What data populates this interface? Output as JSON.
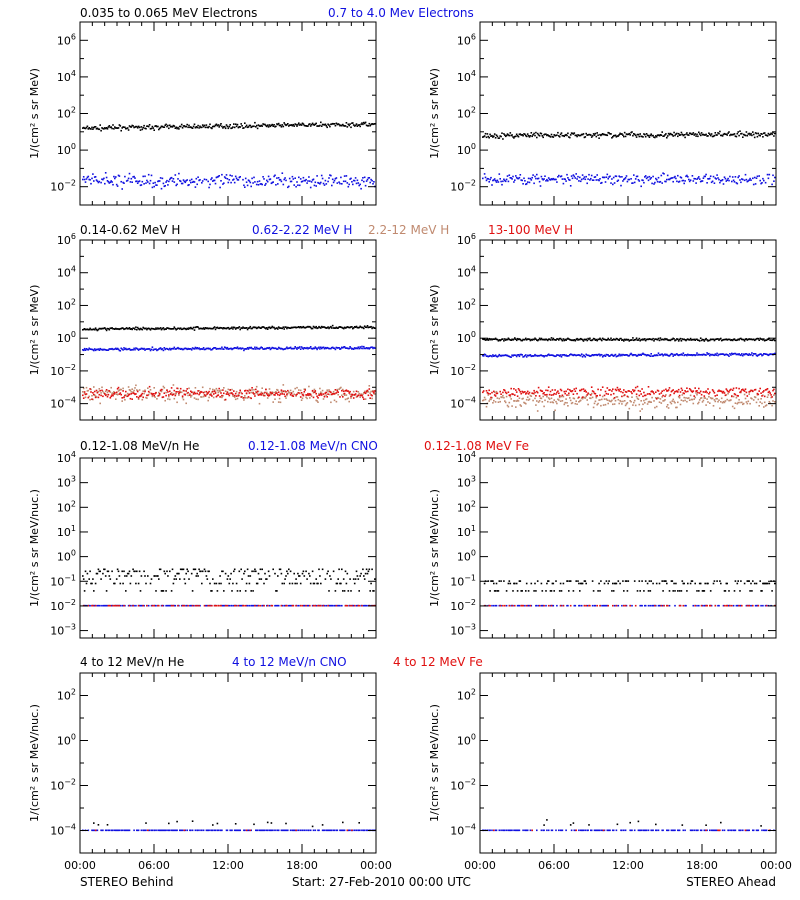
{
  "footer": {
    "left_label": "STEREO Behind",
    "center_label": "Start: 27-Feb-2010 00:00 UTC",
    "right_label": "STEREO Ahead"
  },
  "colors": {
    "black": "#000000",
    "blue": "#1010e0",
    "tan": "#c08a70",
    "red": "#e01010"
  },
  "chart_data": [
    {
      "type": "scatter",
      "row": 1,
      "spacecraft": "STEREO Behind",
      "ylabel": "1/(cm² s sr MeV)",
      "y_scale": "log",
      "ylim": [
        0.001,
        10000000
      ],
      "y_ticks": [
        "10^-2",
        "10^0",
        "10^2",
        "10^4",
        "10^6"
      ],
      "x_ticks": [
        "00:00",
        "06:00",
        "12:00",
        "18:00",
        "00:00"
      ],
      "legend": [
        {
          "name": "0.035 to 0.065 MeV Electrons",
          "color": "black"
        },
        {
          "name": "0.7 to 4.0 Mev Electrons",
          "color": "blue"
        }
      ],
      "series": [
        {
          "name": "0.035 to 0.065 MeV Electrons",
          "color": "black",
          "level": 15,
          "level_end": 25,
          "spread": 0.12,
          "gaps": 0
        },
        {
          "name": "0.7 to 4.0 Mev Electrons",
          "color": "blue",
          "level": 0.02,
          "spread": 0.35,
          "gaps": 0.05
        }
      ]
    },
    {
      "type": "scatter",
      "row": 1,
      "spacecraft": "STEREO Ahead",
      "ylabel": "1/(cm² s sr MeV)",
      "y_scale": "log",
      "ylim": [
        0.001,
        10000000
      ],
      "y_ticks": [
        "10^-2",
        "10^0",
        "10^2",
        "10^4",
        "10^6"
      ],
      "x_ticks": [
        "00:00",
        "06:00",
        "12:00",
        "18:00",
        "00:00"
      ],
      "legend": [],
      "series": [
        {
          "name": "0.035 to 0.065 MeV Electrons",
          "color": "black",
          "level": 6,
          "level_end": 7,
          "spread": 0.15,
          "gaps": 0
        },
        {
          "name": "0.7 to 4.0 Mev Electrons",
          "color": "blue",
          "level": 0.025,
          "spread": 0.3,
          "gaps": 0.04
        }
      ]
    },
    {
      "type": "scatter",
      "row": 2,
      "spacecraft": "STEREO Behind",
      "ylabel": "1/(cm² s sr MeV)",
      "y_scale": "log",
      "ylim": [
        1e-05,
        1000000
      ],
      "y_ticks": [
        "10^-4",
        "10^-2",
        "10^0",
        "10^2",
        "10^4",
        "10^6"
      ],
      "x_ticks": [
        "00:00",
        "06:00",
        "12:00",
        "18:00",
        "00:00"
      ],
      "legend": [
        {
          "name": "0.14-0.62 MeV H",
          "color": "black"
        },
        {
          "name": "0.62-2.22 MeV H",
          "color": "blue"
        },
        {
          "name": "2.2-12 MeV H",
          "color": "tan"
        },
        {
          "name": "13-100 MeV H",
          "color": "red"
        }
      ],
      "series": [
        {
          "name": "0.14-0.62 MeV H",
          "color": "black",
          "level": 3.5,
          "level_end": 4.5,
          "spread": 0.08,
          "gaps": 0
        },
        {
          "name": "0.62-2.22 MeV H",
          "color": "blue",
          "level": 0.2,
          "level_end": 0.25,
          "spread": 0.08,
          "gaps": 0
        },
        {
          "name": "2.2-12 MeV H",
          "color": "tan",
          "level": 0.0004,
          "spread": 0.45,
          "gaps": 0
        },
        {
          "name": "13-100 MeV H",
          "color": "red",
          "level": 0.0004,
          "spread": 0.3,
          "gaps": 0.1
        }
      ]
    },
    {
      "type": "scatter",
      "row": 2,
      "spacecraft": "STEREO Ahead",
      "ylabel": "1/(cm² s sr MeV)",
      "y_scale": "log",
      "ylim": [
        1e-05,
        1000000
      ],
      "y_ticks": [
        "10^-4",
        "10^-2",
        "10^0",
        "10^2",
        "10^4",
        "10^6"
      ],
      "x_ticks": [
        "00:00",
        "06:00",
        "12:00",
        "18:00",
        "00:00"
      ],
      "legend": [],
      "series": [
        {
          "name": "0.14-0.62 MeV H",
          "color": "black",
          "level": 0.8,
          "spread": 0.08,
          "gaps": 0
        },
        {
          "name": "0.62-2.22 MeV H",
          "color": "blue",
          "level": 0.08,
          "level_end": 0.1,
          "spread": 0.08,
          "gaps": 0
        },
        {
          "name": "2.2-12 MeV H",
          "color": "tan",
          "level": 0.00015,
          "spread": 0.45,
          "gaps": 0
        },
        {
          "name": "13-100 MeV H",
          "color": "red",
          "level": 0.0005,
          "spread": 0.3,
          "gaps": 0.1
        }
      ]
    },
    {
      "type": "scatter",
      "row": 3,
      "spacecraft": "STEREO Behind",
      "ylabel": "1/(cm² s sr MeV/nuc.)",
      "y_scale": "log",
      "ylim": [
        0.0005,
        10000
      ],
      "y_ticks": [
        "10^-3",
        "10^-2",
        "10^-1",
        "10^0",
        "10^1",
        "10^2",
        "10^3",
        "10^4"
      ],
      "x_ticks": [
        "00:00",
        "06:00",
        "12:00",
        "18:00",
        "00:00"
      ],
      "legend": [
        {
          "name": "0.12-1.08 MeV/n He",
          "color": "black"
        },
        {
          "name": "0.12-1.08 MeV/n CNO",
          "color": "blue"
        },
        {
          "name": "0.12-1.08 MeV Fe",
          "color": "red"
        }
      ],
      "series": [
        {
          "name": "0.12-1.08 MeV/n He",
          "color": "black",
          "level": 0.12,
          "spread": 0.55,
          "gaps": 0.15,
          "quantized": [
            0.04,
            0.08,
            0.12,
            0.16,
            0.2,
            0.25,
            0.3
          ]
        },
        {
          "name": "0.12-1.08 MeV/n CNO",
          "color": "blue",
          "level": 0.01,
          "spread": 0,
          "gaps": 0.35
        },
        {
          "name": "0.12-1.08 MeV Fe",
          "color": "red",
          "level": 0.01,
          "spread": 0,
          "gaps": 0.75
        }
      ]
    },
    {
      "type": "scatter",
      "row": 3,
      "spacecraft": "STEREO Ahead",
      "ylabel": "1/(cm² s sr MeV/nuc.)",
      "y_scale": "log",
      "ylim": [
        0.0005,
        10000
      ],
      "y_ticks": [
        "10^-3",
        "10^-2",
        "10^-1",
        "10^0",
        "10^1",
        "10^2",
        "10^3",
        "10^4"
      ],
      "x_ticks": [
        "00:00",
        "06:00",
        "12:00",
        "18:00",
        "00:00"
      ],
      "legend": [],
      "series": [
        {
          "name": "0.12-1.08 MeV/n He",
          "color": "black",
          "level": 0.05,
          "spread": 0.45,
          "gaps": 0.45,
          "quantized": [
            0.04,
            0.08,
            0.1
          ]
        },
        {
          "name": "0.12-1.08 MeV/n CNO",
          "color": "blue",
          "level": 0.01,
          "spread": 0,
          "gaps": 0.55
        },
        {
          "name": "0.12-1.08 MeV Fe",
          "color": "red",
          "level": 0.01,
          "spread": 0,
          "gaps": 0.85
        }
      ]
    },
    {
      "type": "scatter",
      "row": 4,
      "spacecraft": "STEREO Behind",
      "ylabel": "1/(cm² s sr MeV/nuc.)",
      "y_scale": "log",
      "ylim": [
        1e-05,
        1000
      ],
      "y_ticks": [
        "10^-4",
        "10^-2",
        "10^0",
        "10^2"
      ],
      "x_ticks": [
        "00:00",
        "06:00",
        "12:00",
        "18:00",
        "00:00"
      ],
      "legend": [
        {
          "name": "4 to 12 MeV/n He",
          "color": "black"
        },
        {
          "name": "4 to 12 MeV/n CNO",
          "color": "blue"
        },
        {
          "name": "4 to 12 MeV Fe",
          "color": "red"
        }
      ],
      "series": [
        {
          "name": "4 to 12 MeV/n He",
          "color": "black",
          "level": 0.0002,
          "spread": 0.15,
          "gaps": 0.93
        },
        {
          "name": "4 to 12 MeV/n CNO",
          "color": "blue",
          "level": 0.0001,
          "spread": 0,
          "gaps": 0.35
        },
        {
          "name": "4 to 12 MeV Fe",
          "color": "red",
          "level": 0.0001,
          "spread": 0,
          "gaps": 0.98
        }
      ]
    },
    {
      "type": "scatter",
      "row": 4,
      "spacecraft": "STEREO Ahead",
      "ylabel": "1/(cm² s sr MeV/nuc.)",
      "y_scale": "log",
      "ylim": [
        1e-05,
        1000
      ],
      "y_ticks": [
        "10^-4",
        "10^-2",
        "10^0",
        "10^2"
      ],
      "x_ticks": [
        "00:00",
        "06:00",
        "12:00",
        "18:00",
        "00:00"
      ],
      "legend": [],
      "series": [
        {
          "name": "4 to 12 MeV/n He",
          "color": "black",
          "level": 0.0002,
          "spread": 0.15,
          "gaps": 0.95
        },
        {
          "name": "4 to 12 MeV/n CNO",
          "color": "blue",
          "level": 0.0001,
          "spread": 0,
          "gaps": 0.45
        },
        {
          "name": "4 to 12 MeV Fe",
          "color": "red",
          "level": 0.0001,
          "spread": 0,
          "gaps": 0.98
        }
      ]
    }
  ]
}
